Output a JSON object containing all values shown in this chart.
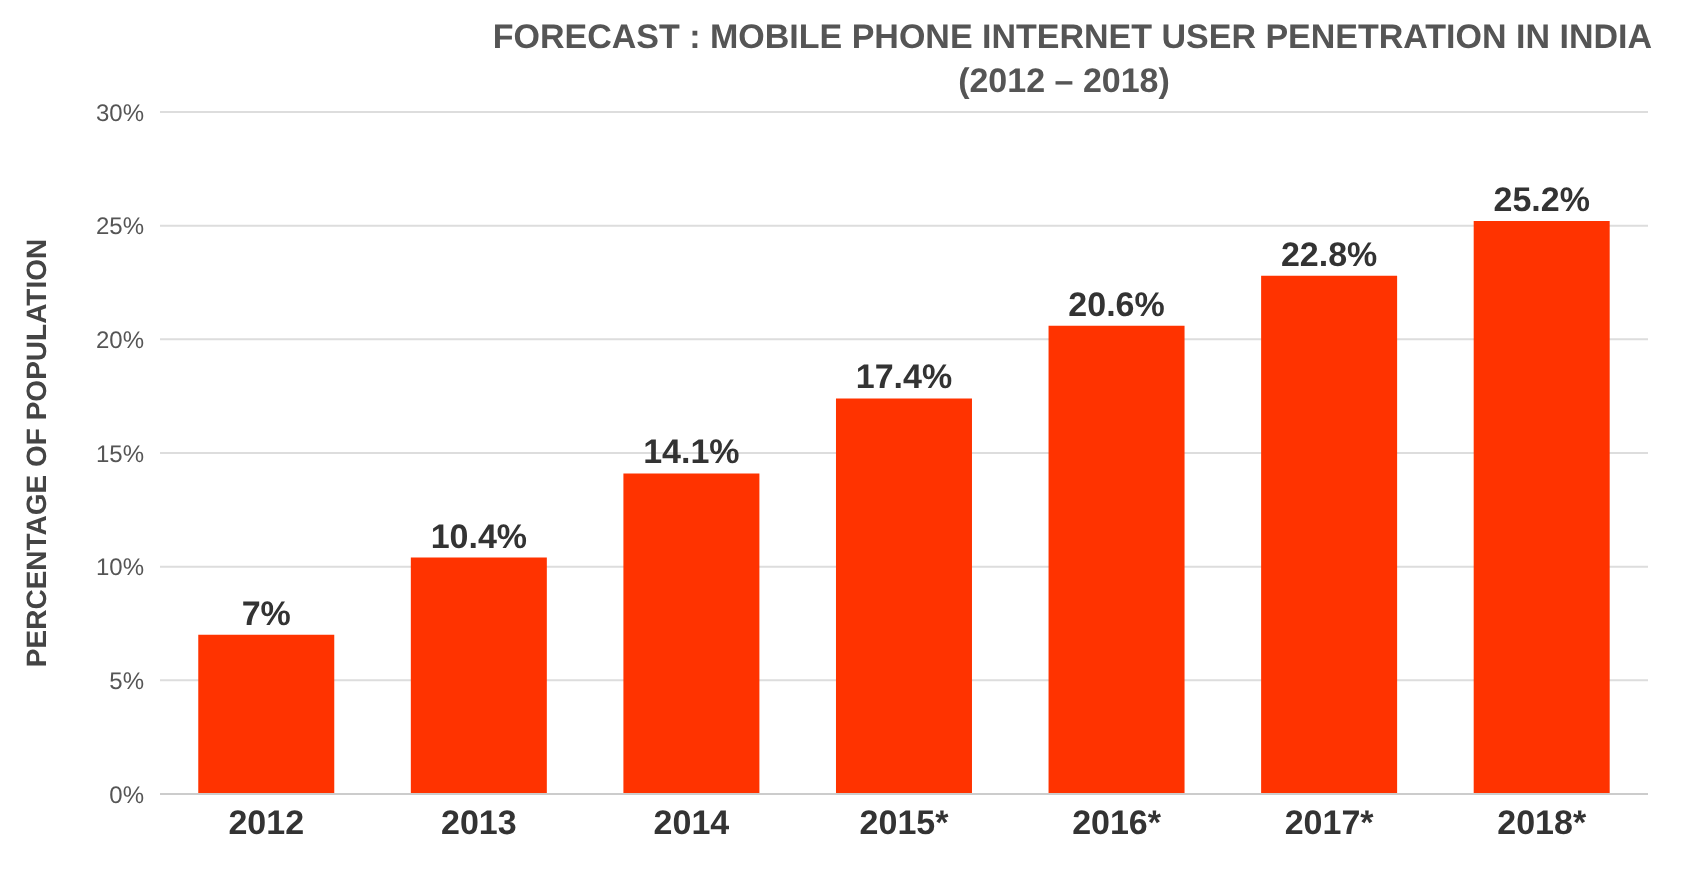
{
  "chart_data": {
    "type": "bar",
    "title": "FORECAST : MOBILE PHONE INTERNET USER PENETRATION IN INDIA",
    "subtitle": "(2012 – 2018)",
    "ylabel": "PERCENTAGE OF POPULATION",
    "categories": [
      "2012",
      "2013",
      "2014",
      "2015*",
      "2016*",
      "2017*",
      "2018*"
    ],
    "values": [
      7,
      10.4,
      14.1,
      17.4,
      20.6,
      22.8,
      25.2
    ],
    "value_labels": [
      "7%",
      "10.4%",
      "14.1%",
      "17.4%",
      "20.6%",
      "22.8%",
      "25.2%"
    ],
    "color": "#ff3300",
    "ylim": [
      0,
      30
    ],
    "yticks": [
      {
        "value": 0,
        "label": "0%"
      },
      {
        "value": 5,
        "label": "5%"
      },
      {
        "value": 10,
        "label": "10%"
      },
      {
        "value": 15,
        "label": "15%"
      },
      {
        "value": 20,
        "label": "20%"
      },
      {
        "value": 25,
        "label": "25%"
      },
      {
        "value": 30,
        "label": "30%"
      }
    ],
    "grid": "y"
  }
}
